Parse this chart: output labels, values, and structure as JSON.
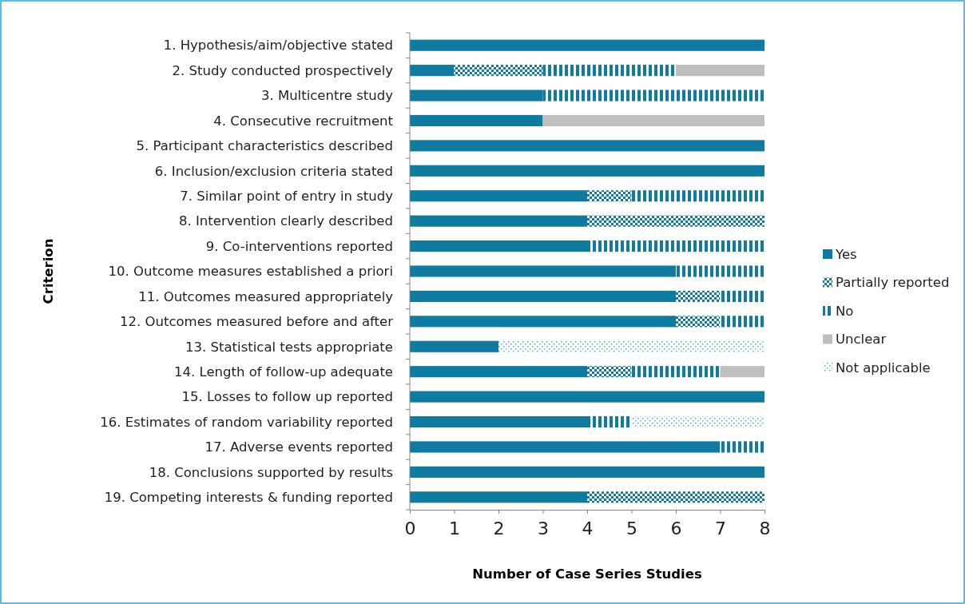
{
  "chart_data": {
    "type": "bar",
    "orientation": "horizontal",
    "stacked": true,
    "xlabel": "Number of Case Series Studies",
    "ylabel": "Criterion",
    "categories": [
      "1. Hypothesis/aim/objective stated",
      "2. Study conducted prospectively",
      "3. Multicentre study",
      "4. Consecutive recruitment",
      "5. Participant characteristics described",
      "6. Inclusion/exclusion criteria stated",
      "7. Similar point of entry in study",
      "8. Intervention clearly described",
      "9. Co-interventions reported",
      "10. Outcome measures established a priori",
      "11. Outcomes measured appropriately",
      "12. Outcomes measured before and after",
      "13. Statistical tests appropriate",
      "14. Length of follow-up adequate",
      "15. Losses to follow up reported",
      "16. Estimates of random variability reported",
      "17. Adverse events reported",
      "18. Conclusions supported by results",
      "19. Competing interests & funding reported"
    ],
    "series": [
      {
        "name": "Yes",
        "color": "#0f7ba1",
        "values": [
          8,
          1,
          3,
          3,
          8,
          8,
          4,
          4,
          4,
          6,
          6,
          6,
          2,
          4,
          8,
          4,
          7,
          8,
          4
        ]
      },
      {
        "name": "Partially reported",
        "color": "#0f7ba1",
        "values": [
          0,
          2,
          0,
          0,
          0,
          0,
          1,
          4,
          0,
          0,
          1,
          1,
          0,
          1,
          0,
          0,
          0,
          0,
          4
        ]
      },
      {
        "name": "No",
        "color": "#0f7ba1",
        "values": [
          0,
          3,
          5,
          0,
          0,
          0,
          3,
          0,
          4,
          2,
          1,
          1,
          0,
          2,
          0,
          1,
          1,
          0,
          0
        ]
      },
      {
        "name": "Unclear",
        "color": "#bfbfbf",
        "values": [
          0,
          2,
          0,
          5,
          0,
          0,
          0,
          0,
          0,
          0,
          0,
          0,
          0,
          1,
          0,
          0,
          0,
          0,
          0
        ]
      },
      {
        "name": "Not applicable",
        "color": "#3fb2d8",
        "values": [
          0,
          0,
          0,
          0,
          0,
          0,
          0,
          0,
          0,
          0,
          0,
          0,
          6,
          0,
          0,
          3,
          0,
          0,
          0
        ]
      }
    ],
    "xlim": [
      0,
      8
    ],
    "xticks": [
      0,
      1,
      2,
      3,
      4,
      5,
      6,
      7,
      8
    ],
    "grid": false,
    "legend": "right"
  }
}
